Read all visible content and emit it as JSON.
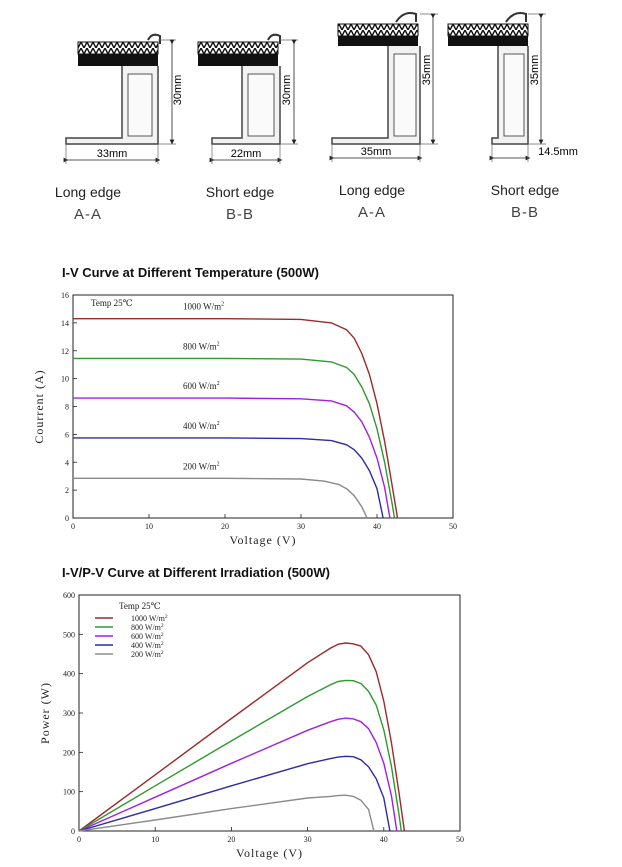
{
  "frames": [
    {
      "dim_width": "33mm",
      "dim_height": "30mm",
      "edge": "Long edge",
      "section": "A-A"
    },
    {
      "dim_width": "22mm",
      "dim_height": "30mm",
      "edge": "Short edge",
      "section": "B-B"
    },
    {
      "dim_width": "35mm",
      "dim_height": "35mm",
      "edge": "Long edge",
      "section": "A-A"
    },
    {
      "dim_width": "14.5mm",
      "dim_height": "35mm",
      "edge": "Short edge",
      "section": "B-B"
    }
  ],
  "colors": {
    "c1000": "#9b2a2a",
    "c800": "#2e9a2e",
    "c600": "#a020e0",
    "c400": "#2c2ca8",
    "c200": "#8a8a8a"
  },
  "chart_data": [
    {
      "type": "line",
      "title": "I-V Curve at Different Temperature (500W)",
      "annotation": "Temp 25℃",
      "xlabel": "Voltage (V)",
      "ylabel": "Courrent (A)",
      "xlim": [
        0,
        50
      ],
      "ylim": [
        0,
        16
      ],
      "xticks": [
        0,
        10,
        20,
        30,
        40,
        50
      ],
      "yticks": [
        0,
        2,
        4,
        6,
        8,
        10,
        12,
        14,
        16
      ],
      "series": [
        {
          "name": "1000 W/m²",
          "label_sup": "2",
          "label_base": "1000 W/m",
          "color_key": "c1000",
          "x": [
            0,
            10,
            20,
            30,
            34,
            36,
            37,
            38,
            39,
            40,
            41,
            42,
            42.7
          ],
          "y": [
            14.3,
            14.3,
            14.3,
            14.25,
            14.0,
            13.5,
            12.9,
            11.8,
            10.3,
            8.2,
            5.5,
            2.3,
            0
          ]
        },
        {
          "name": "800 W/m²",
          "label_sup": "2",
          "label_base": "800 W/m",
          "color_key": "c800",
          "x": [
            0,
            10,
            20,
            30,
            34,
            36,
            37,
            38,
            39,
            40,
            41,
            42,
            42.3
          ],
          "y": [
            11.45,
            11.45,
            11.45,
            11.4,
            11.2,
            10.8,
            10.3,
            9.4,
            8.2,
            6.4,
            4.0,
            1.0,
            0
          ]
        },
        {
          "name": "600 W/m²",
          "label_sup": "2",
          "label_base": "600 W/m",
          "color_key": "c600",
          "x": [
            0,
            10,
            20,
            30,
            34,
            36,
            37,
            38,
            39,
            40,
            41,
            41.7
          ],
          "y": [
            8.6,
            8.6,
            8.6,
            8.55,
            8.4,
            8.05,
            7.6,
            6.9,
            5.8,
            4.3,
            2.2,
            0
          ]
        },
        {
          "name": "400 W/m²",
          "label_sup": "2",
          "label_base": "400 W/m",
          "color_key": "c400",
          "x": [
            0,
            10,
            20,
            30,
            34,
            36,
            37,
            38,
            39,
            40,
            40.8
          ],
          "y": [
            5.75,
            5.75,
            5.75,
            5.7,
            5.55,
            5.25,
            4.9,
            4.3,
            3.4,
            2.1,
            0
          ]
        },
        {
          "name": "200 W/m²",
          "label_sup": "2",
          "label_base": "200 W/m",
          "color_key": "c200",
          "x": [
            0,
            10,
            20,
            30,
            33,
            35,
            36,
            37,
            38,
            38.7
          ],
          "y": [
            2.85,
            2.85,
            2.85,
            2.8,
            2.65,
            2.4,
            2.1,
            1.6,
            0.8,
            0
          ]
        }
      ]
    },
    {
      "type": "line",
      "title": "I-V/P-V Curve at Different Irradiation (500W)",
      "annotation": "Temp 25℃",
      "xlabel": "Voltage (V)",
      "ylabel": "Power (W)",
      "xlim": [
        0,
        50
      ],
      "ylim": [
        0,
        600
      ],
      "xticks": [
        0,
        10,
        20,
        30,
        40,
        50
      ],
      "yticks": [
        0,
        100,
        200,
        300,
        400,
        500,
        600
      ],
      "legend": "top-left",
      "series": [
        {
          "name": "1000  W/m²",
          "label_base": "1000  W/m",
          "label_sup": "2",
          "color_key": "c1000",
          "x": [
            0,
            10,
            20,
            30,
            33,
            34,
            35,
            36,
            37,
            38,
            39,
            40,
            41,
            42,
            42.7
          ],
          "y": [
            0,
            143,
            286,
            428,
            465,
            475,
            478,
            476,
            470,
            448,
            405,
            330,
            225,
            97,
            0
          ]
        },
        {
          "name": "800  W/m²",
          "label_base": "800  W/m",
          "label_sup": "2",
          "color_key": "c800",
          "x": [
            0,
            10,
            20,
            30,
            33,
            34,
            35,
            36,
            37,
            38,
            39,
            40,
            41,
            42,
            42.3
          ],
          "y": [
            0,
            115,
            229,
            342,
            372,
            380,
            383,
            382,
            375,
            355,
            320,
            257,
            165,
            42,
            0
          ]
        },
        {
          "name": "600  W/m²",
          "label_base": "600  W/m",
          "label_sup": "2",
          "color_key": "c600",
          "x": [
            0,
            10,
            20,
            30,
            33,
            34,
            35,
            36,
            37,
            38,
            39,
            40,
            41,
            41.7
          ],
          "y": [
            0,
            86,
            172,
            256,
            278,
            284,
            287,
            285,
            278,
            260,
            225,
            172,
            90,
            0
          ]
        },
        {
          "name": "400  W/m²",
          "label_base": "400  W/m",
          "label_sup": "2",
          "color_key": "c400",
          "x": [
            0,
            10,
            20,
            30,
            33,
            34,
            35,
            36,
            37,
            38,
            39,
            40,
            40.8
          ],
          "y": [
            0,
            57,
            115,
            171,
            184,
            188,
            190,
            189,
            181,
            163,
            133,
            84,
            0
          ]
        },
        {
          "name": "200  W/m²",
          "label_base": "200  W/m",
          "label_sup": "2",
          "color_key": "c200",
          "x": [
            0,
            10,
            20,
            30,
            33,
            34,
            35,
            36,
            37,
            38,
            38.7
          ],
          "y": [
            0,
            28,
            57,
            84,
            88,
            90,
            91,
            88,
            78,
            55,
            0
          ]
        }
      ]
    }
  ]
}
